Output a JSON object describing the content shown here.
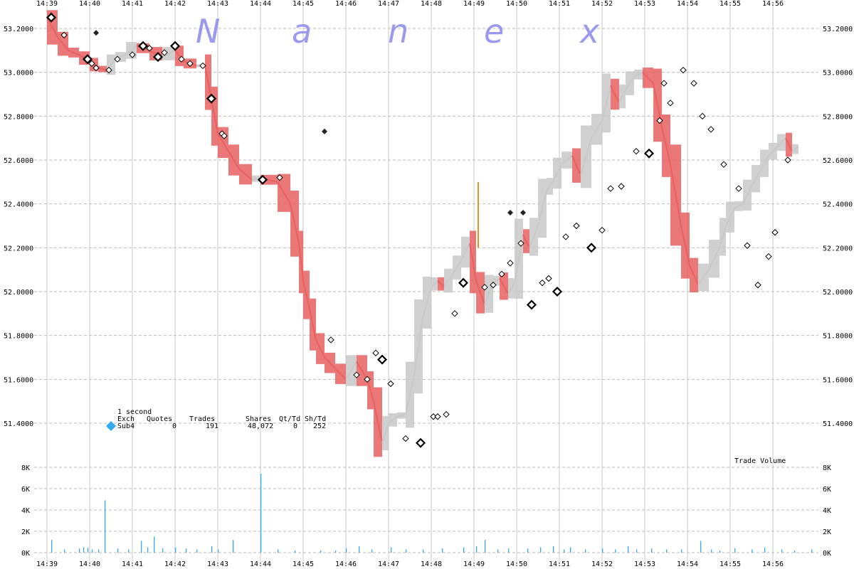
{
  "chart_data": [
    {
      "type": "line",
      "title": "",
      "watermark": [
        "N",
        "a",
        "n",
        "e",
        "x"
      ],
      "x_tick_labels": [
        "14:39",
        "14:40",
        "14:41",
        "14:42",
        "14:43",
        "14:44",
        "14:45",
        "14:46",
        "14:47",
        "14:48",
        "14:49",
        "14:50",
        "14:51",
        "14:52",
        "14:53",
        "14:54",
        "14:55",
        "14:56"
      ],
      "y_tick_labels": [
        "53.2000",
        "53.0000",
        "52.8000",
        "52.6000",
        "52.4000",
        "52.2000",
        "52.0000",
        "51.8000",
        "51.6000",
        "51.4000"
      ],
      "ylim": [
        51.25,
        53.32
      ],
      "xlim_minutes": [
        -0.45,
        17.95
      ],
      "grid": true,
      "colors": {
        "down": "#e86060",
        "up": "#c8c8c8",
        "mid": "#f0d020",
        "spike": "#e89020",
        "marker": "#000000"
      },
      "series": [
        {
          "x": [
            0,
            0.25,
            0.5,
            0.75,
            1,
            1.2,
            1.4,
            1.6,
            1.85,
            2.1,
            2.4,
            2.7,
            3,
            3.2,
            3.5,
            3.7,
            3.85,
            4,
            4.25,
            4.5,
            4.8,
            5,
            5.4,
            5.7,
            5.9,
            6,
            6.15,
            6.3,
            6.5,
            6.75,
            7,
            7.25,
            7.5,
            7.65,
            7.85,
            8,
            8.2,
            8.4,
            8.6,
            8.8,
            9,
            9.15,
            9.3,
            9.5,
            9.7,
            9.9,
            10.05,
            10.25,
            10.45,
            10.6,
            10.8,
            10.95,
            11.15,
            11.3,
            11.5,
            11.7,
            11.85,
            12.05,
            12.3,
            12.5,
            12.75,
            13,
            13.2,
            13.4,
            13.55,
            13.75,
            13.95,
            14.2,
            14.4,
            14.6,
            14.85,
            15.05,
            15.25,
            15.5,
            15.75,
            15.9,
            16.1,
            16.3,
            16.5,
            16.7,
            16.9,
            17.1,
            17.3,
            17.45,
            17.6
          ],
          "y": [
            53.25,
            53.16,
            53.1,
            53.08,
            53.05,
            53.02,
            53.01,
            53.06,
            53.08,
            53.12,
            53.1,
            53.07,
            53.1,
            53.05,
            53.03,
            53.03,
            52.88,
            52.72,
            52.64,
            52.56,
            52.51,
            52.52,
            52.5,
            52.4,
            52.22,
            52.05,
            51.92,
            51.78,
            51.7,
            51.65,
            51.6,
            51.68,
            51.6,
            51.5,
            51.31,
            51.4,
            51.43,
            51.44,
            51.62,
            51.88,
            52.02,
            52.05,
            52.02,
            52.08,
            52.14,
            52.22,
            52.05,
            51.94,
            52.04,
            52.06,
            51.99,
            52.04,
            52.26,
            52.2,
            52.3,
            52.46,
            52.5,
            52.58,
            52.62,
            52.53,
            52.7,
            52.78,
            52.94,
            52.86,
            52.92,
            52.98,
            53.0,
            52.95,
            52.75,
            52.58,
            52.3,
            52.12,
            52.03,
            52.1,
            52.2,
            52.3,
            52.38,
            52.4,
            52.48,
            52.55,
            52.62,
            52.66,
            52.7,
            52.64,
            52.66
          ]
        }
      ],
      "markers": {
        "x": [
          0.1,
          0.4,
          0.95,
          1.05,
          1.15,
          1.45,
          1.65,
          2.0,
          2.25,
          2.4,
          2.6,
          2.75,
          3.0,
          3.15,
          3.35,
          3.65,
          3.85,
          4.1,
          4.15,
          5.05,
          5.45,
          6.65,
          7.25,
          7.5,
          7.7,
          7.85,
          8.05,
          8.4,
          8.75,
          9.05,
          9.15,
          9.35,
          9.55,
          9.75,
          10.25,
          10.45,
          10.65,
          10.85,
          11.1,
          11.35,
          11.6,
          11.75,
          11.95,
          12.15,
          12.4,
          12.75,
          13.0,
          13.2,
          13.45,
          13.8,
          14.1,
          14.35,
          14.45,
          14.6,
          14.9,
          15.15,
          15.35,
          15.55,
          15.85,
          16.2,
          16.4,
          16.65,
          16.9,
          17.05,
          17.35
        ],
        "y": [
          53.25,
          53.17,
          53.06,
          53.04,
          53.02,
          53.01,
          53.06,
          53.08,
          53.12,
          53.11,
          53.07,
          53.09,
          53.12,
          53.06,
          53.04,
          53.03,
          52.88,
          52.72,
          52.71,
          52.51,
          52.52,
          51.78,
          51.62,
          51.6,
          51.72,
          51.69,
          51.58,
          51.33,
          51.31,
          51.43,
          51.43,
          51.44,
          51.9,
          52.04,
          52.02,
          52.03,
          52.08,
          52.13,
          52.22,
          51.94,
          52.04,
          52.06,
          52.0,
          52.25,
          52.3,
          52.2,
          52.28,
          52.47,
          52.48,
          52.64,
          52.63,
          52.78,
          52.95,
          52.86,
          53.01,
          52.95,
          52.8,
          52.74,
          52.58,
          52.47,
          52.21,
          52.03,
          52.16,
          52.27,
          52.6
        ],
        "bold": [
          0,
          2,
          8,
          10,
          12,
          16,
          19,
          25,
          28,
          33,
          39,
          42,
          45,
          50
        ]
      },
      "solid_markers": {
        "x": [
          1.15,
          6.5,
          10.85,
          11.15
        ],
        "y": [
          53.18,
          52.73,
          52.36,
          52.36
        ]
      },
      "legend": {
        "title": "1 second",
        "headers": [
          "Exch",
          "Quotes",
          "Trades",
          "Shares",
          "Qt/Td",
          "Sh/Td"
        ],
        "row": [
          "Sub4",
          "0",
          "191",
          "48,072",
          "0",
          "252"
        ],
        "color": "#33aaee"
      }
    },
    {
      "type": "bar",
      "label": "Trade Volume",
      "y_tick_labels": [
        "8K",
        "6K",
        "4K",
        "2K",
        "0K"
      ],
      "ylim": [
        0,
        8000
      ],
      "color": "#33aaee",
      "x_minutes": [
        0.1,
        0.4,
        0.75,
        0.85,
        0.95,
        1.05,
        1.2,
        1.35,
        1.65,
        1.9,
        2.2,
        2.35,
        2.5,
        2.7,
        3.0,
        3.25,
        3.5,
        3.85,
        4.0,
        4.35,
        5.0,
        5.4,
        5.8,
        6.4,
        6.75,
        7.0,
        7.3,
        7.6,
        8.05,
        8.4,
        8.8,
        9.25,
        9.75,
        10.05,
        10.25,
        10.55,
        10.8,
        11.25,
        11.55,
        11.85,
        12.1,
        12.25,
        12.6,
        13.0,
        13.3,
        13.6,
        13.8,
        14.15,
        14.5,
        14.85,
        15.3,
        15.55,
        15.75,
        16.1,
        16.5,
        16.8,
        17.2,
        17.5,
        17.9
      ],
      "values": [
        1200,
        300,
        400,
        500,
        450,
        300,
        300,
        4900,
        400,
        300,
        1100,
        500,
        1500,
        400,
        500,
        400,
        300,
        600,
        300,
        1200,
        7400,
        300,
        200,
        200,
        200,
        400,
        600,
        300,
        500,
        300,
        300,
        400,
        500,
        600,
        1200,
        300,
        400,
        400,
        500,
        600,
        300,
        500,
        300,
        400,
        300,
        600,
        300,
        400,
        300,
        300,
        1100,
        300,
        200,
        400,
        300,
        500,
        300,
        200,
        300
      ]
    }
  ]
}
